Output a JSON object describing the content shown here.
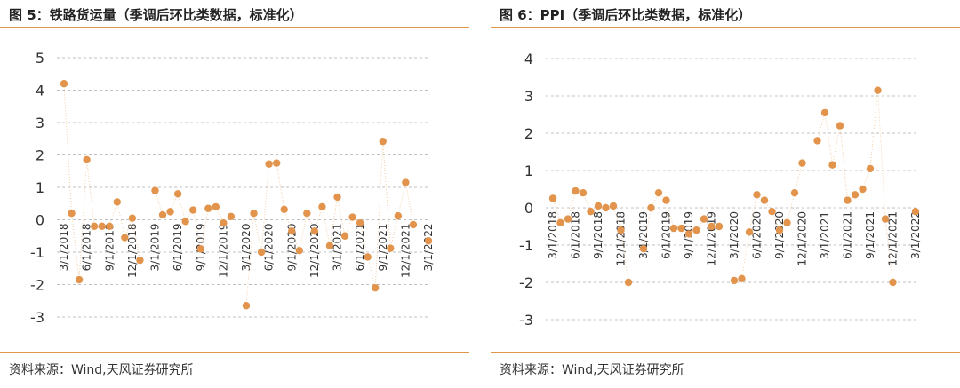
{
  "figures": [
    {
      "title": "图 5：铁路货运量（季调后环比类数据，标准化）",
      "source": "资料来源：Wind,天风证券研究所"
    },
    {
      "title": "图 6：PPI（季调后环比类数据，标准化）",
      "source": "资料来源：Wind,天风证券研究所"
    }
  ],
  "chart_data": [
    {
      "type": "line",
      "title": "图 5：铁路货运量（季调后环比类数据，标准化）",
      "xlabel": "",
      "ylabel": "",
      "ylim": [
        -3,
        5
      ],
      "yticks": [
        "5",
        "4",
        "3",
        "2",
        "1",
        "0",
        "-1",
        "-2",
        "-3"
      ],
      "xtick_labels": [
        "3/1/2018",
        "6/1/2018",
        "9/1/2018",
        "12/1/2018",
        "3/1/2019",
        "6/1/2019",
        "9/1/2019",
        "12/1/2019",
        "3/1/2020",
        "6/1/2020",
        "9/1/2020",
        "12/1/2020",
        "3/1/2021",
        "6/1/2021",
        "9/1/2021",
        "12/1/2021",
        "3/1/2022"
      ],
      "grid": "horizontal-dashed",
      "marker": "circle",
      "line_style": "dotted",
      "color": "#e2944c",
      "x": [
        "2018-03",
        "2018-04",
        "2018-05",
        "2018-06",
        "2018-07",
        "2018-08",
        "2018-09",
        "2018-10",
        "2018-11",
        "2018-12",
        "2019-01",
        "2019-02",
        "2019-03",
        "2019-04",
        "2019-05",
        "2019-06",
        "2019-07",
        "2019-08",
        "2019-09",
        "2019-10",
        "2019-11",
        "2019-12",
        "2020-01",
        "2020-02",
        "2020-03",
        "2020-04",
        "2020-05",
        "2020-06",
        "2020-07",
        "2020-08",
        "2020-09",
        "2020-10",
        "2020-11",
        "2020-12",
        "2021-01",
        "2021-02",
        "2021-03",
        "2021-04",
        "2021-05",
        "2021-06",
        "2021-07",
        "2021-08",
        "2021-09",
        "2021-10",
        "2021-11",
        "2021-12",
        "2022-01",
        "2022-02",
        "2022-03"
      ],
      "values": [
        4.2,
        0.2,
        -1.85,
        1.85,
        -0.2,
        -0.2,
        -0.2,
        0.55,
        -0.55,
        0.05,
        -1.25,
        null,
        0.9,
        0.15,
        0.25,
        0.8,
        -0.05,
        0.3,
        -0.9,
        0.35,
        0.4,
        -0.1,
        0.1,
        null,
        -2.65,
        0.2,
        -1.0,
        1.72,
        1.75,
        0.32,
        -0.35,
        -0.95,
        0.2,
        -0.35,
        0.4,
        -0.8,
        0.7,
        -0.5,
        0.08,
        -0.1,
        -1.15,
        -2.1,
        2.42,
        -0.88,
        0.12,
        1.15,
        -0.15,
        null,
        -0.65
      ]
    },
    {
      "type": "line",
      "title": "图 6：PPI（季调后环比类数据，标准化）",
      "xlabel": "",
      "ylabel": "",
      "ylim": [
        -3,
        4
      ],
      "yticks": [
        "4",
        "3",
        "2",
        "1",
        "0",
        "-1",
        "-2",
        "-3"
      ],
      "xtick_labels": [
        "3/1/2018",
        "6/1/2018",
        "9/1/2018",
        "12/1/2018",
        "3/1/2019",
        "6/1/2019",
        "9/1/2019",
        "12/1/2019",
        "3/1/2020",
        "6/1/2020",
        "9/1/2020",
        "12/1/2020",
        "3/1/2021",
        "6/1/2021",
        "9/1/2021",
        "12/1/2021",
        "3/1/2022"
      ],
      "grid": "horizontal-dashed",
      "marker": "circle",
      "line_style": "dotted",
      "color": "#e2944c",
      "x": [
        "2018-03",
        "2018-04",
        "2018-05",
        "2018-06",
        "2018-07",
        "2018-08",
        "2018-09",
        "2018-10",
        "2018-11",
        "2018-12",
        "2019-01",
        "2019-02",
        "2019-03",
        "2019-04",
        "2019-05",
        "2019-06",
        "2019-07",
        "2019-08",
        "2019-09",
        "2019-10",
        "2019-11",
        "2019-12",
        "2020-01",
        "2020-02",
        "2020-03",
        "2020-04",
        "2020-05",
        "2020-06",
        "2020-07",
        "2020-08",
        "2020-09",
        "2020-10",
        "2020-11",
        "2020-12",
        "2021-01",
        "2021-02",
        "2021-03",
        "2021-04",
        "2021-05",
        "2021-06",
        "2021-07",
        "2021-08",
        "2021-09",
        "2021-10",
        "2021-11",
        "2021-12",
        "2022-01",
        "2022-02",
        "2022-03"
      ],
      "values": [
        0.25,
        -0.4,
        -0.3,
        0.45,
        0.4,
        -0.1,
        0.05,
        0.0,
        0.05,
        -0.6,
        -2.0,
        null,
        -1.1,
        0.0,
        0.4,
        0.2,
        -0.55,
        -0.55,
        -0.7,
        -0.6,
        -0.3,
        -0.5,
        -0.5,
        null,
        -1.95,
        -1.9,
        -0.65,
        0.35,
        0.2,
        -0.1,
        -0.6,
        -0.4,
        0.4,
        1.2,
        null,
        1.8,
        2.55,
        1.15,
        2.2,
        0.2,
        0.35,
        0.5,
        1.05,
        3.15,
        -0.3,
        -2.0,
        null,
        null,
        -0.1
      ]
    }
  ]
}
